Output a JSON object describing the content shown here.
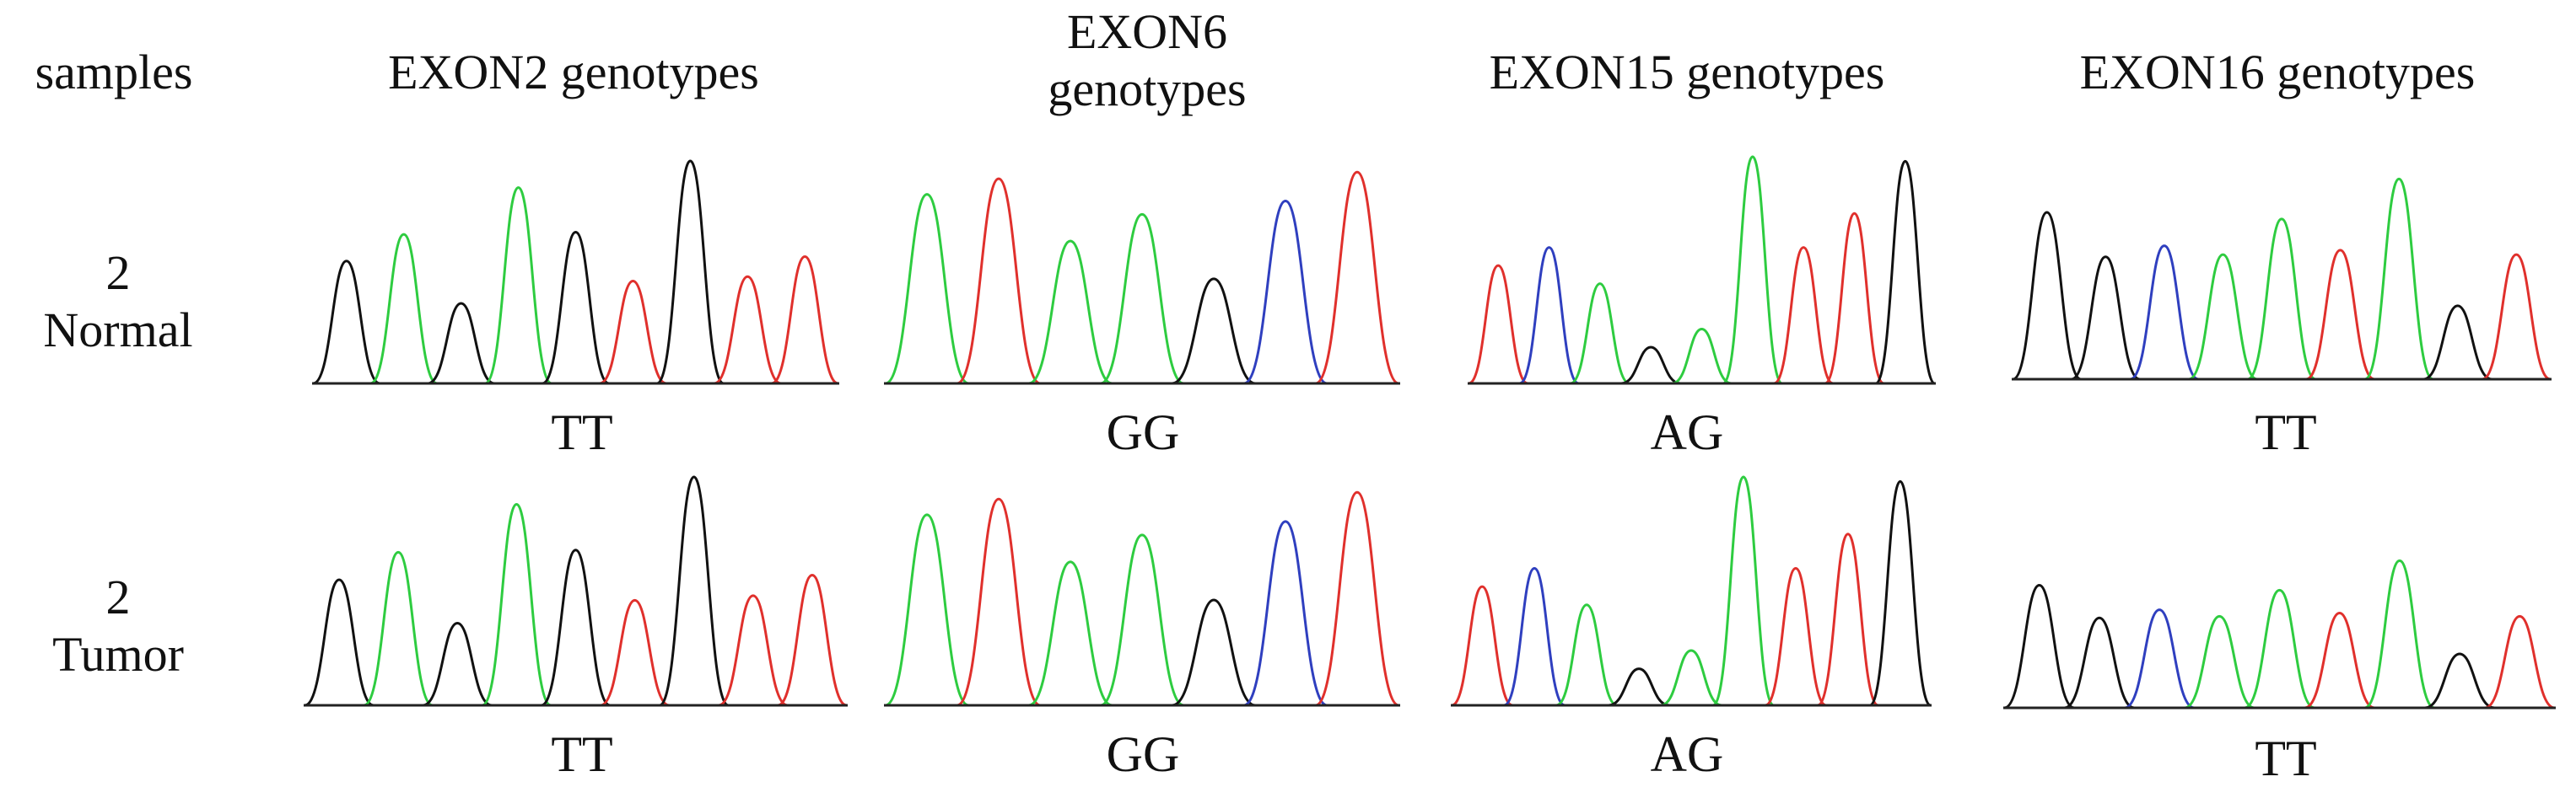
{
  "header": {
    "samples_label": "samples",
    "columns": [
      "EXON2 genotypes",
      "EXON6 genotypes",
      "EXON15 genotypes",
      "EXON16 genotypes"
    ]
  },
  "rows": [
    {
      "label": "2\nNormal",
      "genotypes": [
        "TT",
        "GG",
        "AG",
        "TT"
      ]
    },
    {
      "label": "2\nTumor",
      "genotypes": [
        "TT",
        "GG",
        "AG",
        "TT"
      ]
    }
  ],
  "colors": {
    "A": "#2ecc40",
    "C": "#2f3fbf",
    "G": "#111111",
    "T": "#e0302c",
    "baseline": "#222222"
  },
  "traces": {
    "exon2": [
      {
        "base": "G",
        "h": 0.55
      },
      {
        "base": "A",
        "h": 0.67
      },
      {
        "base": "G",
        "h": 0.36
      },
      {
        "base": "A",
        "h": 0.88
      },
      {
        "base": "G",
        "h": 0.68
      },
      {
        "base": "T",
        "h": 0.46
      },
      {
        "base": "G",
        "h": 1.0
      },
      {
        "base": "T",
        "h": 0.48
      },
      {
        "base": "T",
        "h": 0.57
      }
    ],
    "exon6": [
      {
        "base": "A",
        "h": 0.85
      },
      {
        "base": "T",
        "h": 0.92
      },
      {
        "base": "A",
        "h": 0.64
      },
      {
        "base": "A",
        "h": 0.76
      },
      {
        "base": "G",
        "h": 0.47
      },
      {
        "base": "C",
        "h": 0.82
      },
      {
        "base": "T",
        "h": 0.95
      }
    ],
    "exon15": [
      {
        "base": "T",
        "h": 0.52
      },
      {
        "base": "C",
        "h": 0.6
      },
      {
        "base": "A",
        "h": 0.44
      },
      {
        "base": "G",
        "h": 0.16
      },
      {
        "base": "A",
        "h": 0.24
      },
      {
        "base": "A",
        "h": 1.0
      },
      {
        "base": "T",
        "h": 0.6
      },
      {
        "base": "T",
        "h": 0.75
      },
      {
        "base": "G",
        "h": 0.98
      }
    ],
    "exon16": [
      {
        "base": "G",
        "h": 0.75
      },
      {
        "base": "G",
        "h": 0.55
      },
      {
        "base": "C",
        "h": 0.6
      },
      {
        "base": "A",
        "h": 0.56
      },
      {
        "base": "A",
        "h": 0.72
      },
      {
        "base": "T",
        "h": 0.58
      },
      {
        "base": "A",
        "h": 0.9
      },
      {
        "base": "G",
        "h": 0.33
      },
      {
        "base": "T",
        "h": 0.56
      }
    ]
  }
}
